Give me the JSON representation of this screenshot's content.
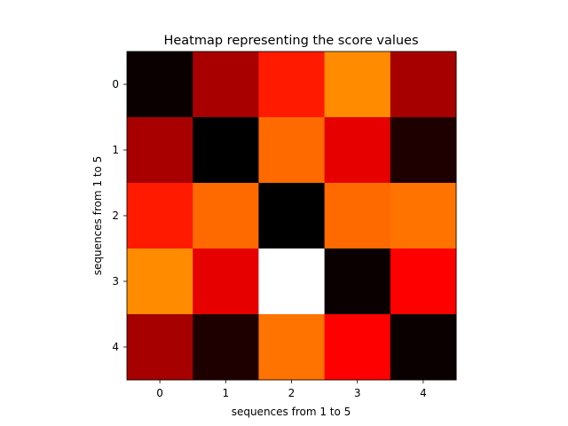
{
  "chart_data": {
    "type": "heatmap",
    "title": "Heatmap representing the score values",
    "xlabel": "sequences from 1 to 5",
    "ylabel": "sequences from 1 to 5",
    "x_ticks": [
      "0",
      "1",
      "2",
      "3",
      "4"
    ],
    "y_ticks": [
      "0",
      "1",
      "2",
      "3",
      "4"
    ],
    "colormap": "hot",
    "colors": {
      "grid": [
        [
          "#0b0000",
          "#a80000",
          "#ff1a00",
          "#ff8c00",
          "#a60000"
        ],
        [
          "#a80000",
          "#000000",
          "#ff6a00",
          "#e60000",
          "#1f0000"
        ],
        [
          "#ff1a00",
          "#ff6a00",
          "#000000",
          "#ff6a00",
          "#ff7300"
        ],
        [
          "#ff8c00",
          "#e60000",
          "#ffffff",
          "#0b0000",
          "#ff0000"
        ],
        [
          "#a60000",
          "#1f0000",
          "#ff7300",
          "#ff0000",
          "#0b0000"
        ]
      ]
    }
  }
}
